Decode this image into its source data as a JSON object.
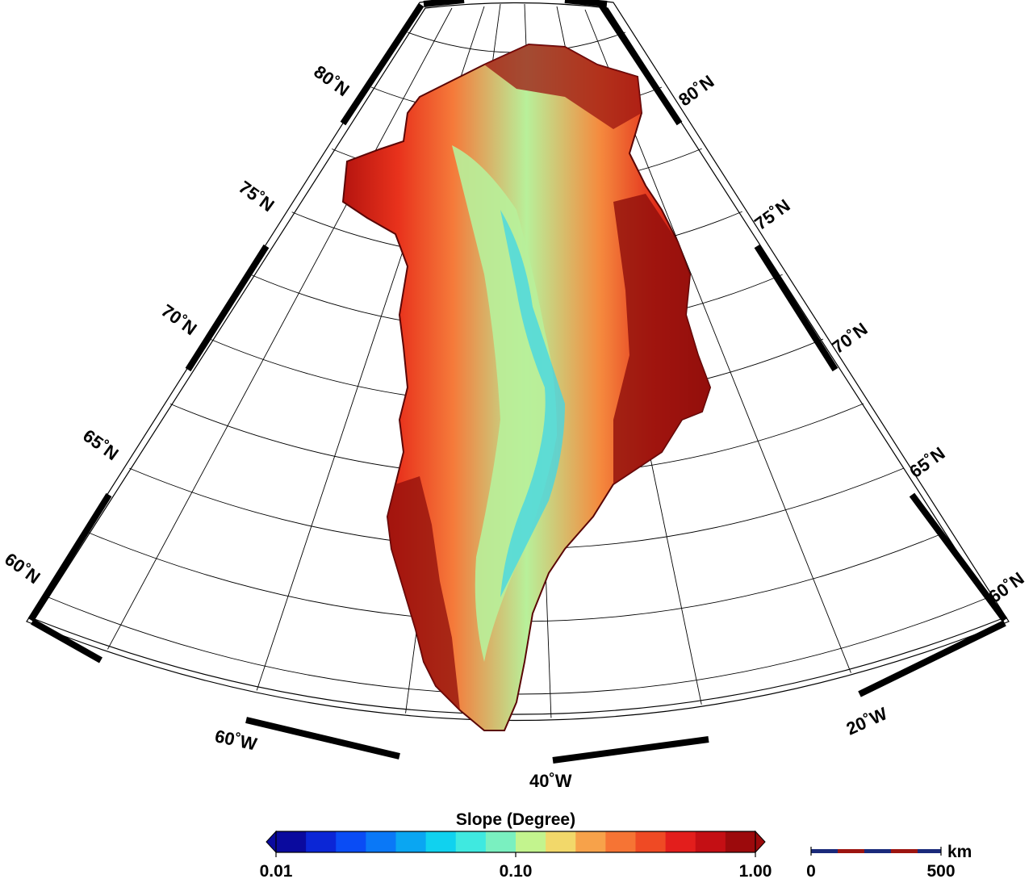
{
  "map": {
    "projection": "polar stereographic sector",
    "latitude_labels": [
      "60˚N",
      "65˚N",
      "70˚N",
      "75˚N",
      "80˚N"
    ],
    "longitude_labels": [
      "60˚W",
      "40˚W",
      "20˚W"
    ],
    "region": "Greenland ice sheet slope"
  },
  "colorbar": {
    "title": "Slope (Degree)",
    "tick_labels": [
      "0.01",
      "0.10",
      "1.00"
    ],
    "scale": "log",
    "range": [
      0.01,
      1.0
    ],
    "colors": [
      "#0a0a9e",
      "#0b26d6",
      "#0a4cf5",
      "#0a78f7",
      "#0aa6f2",
      "#10d2ef",
      "#3fe9e0",
      "#7af0c0",
      "#c3f48e",
      "#f2d86a",
      "#f7a24a",
      "#f67434",
      "#ef4a24",
      "#e31e1c",
      "#c40f14",
      "#9c0a0c"
    ]
  },
  "scalebar": {
    "unit": "km",
    "tick_labels": [
      "0",
      "500"
    ]
  }
}
